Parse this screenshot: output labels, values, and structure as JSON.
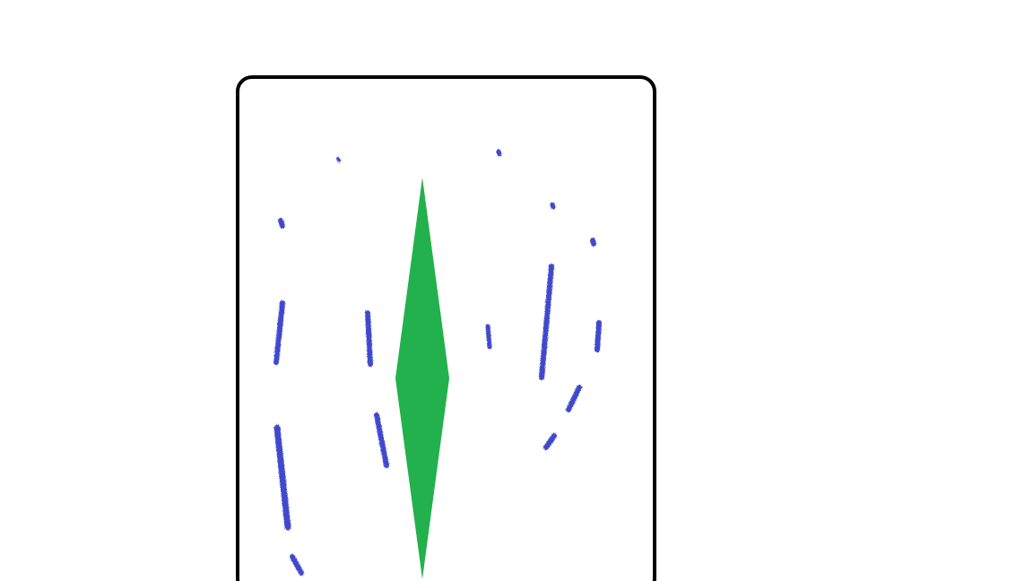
{
  "scene": {
    "board": {
      "border_color": "#000000",
      "background": "#ffffff"
    },
    "player": {
      "shape": "diamond",
      "color": "#22b14c"
    },
    "debris": {
      "color": "#3f48cc",
      "count": 21
    }
  }
}
